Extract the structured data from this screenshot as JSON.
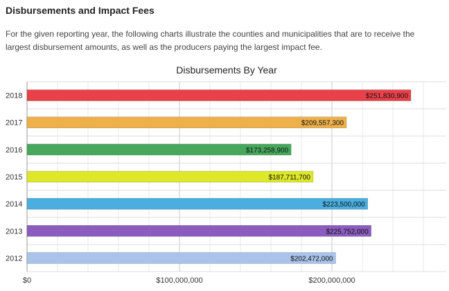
{
  "page": {
    "heading": "Disbursements and Impact Fees",
    "intro": "For the given reporting year, the following charts illustrate the counties and municipalities that are to receive the largest disbursement amounts, as well as the producers paying the largest impact fee."
  },
  "chart_data": {
    "type": "bar",
    "orientation": "horizontal",
    "title": "Disbursements By Year",
    "categories": [
      "2018",
      "2017",
      "2016",
      "2015",
      "2014",
      "2013",
      "2012"
    ],
    "values": [
      251830900,
      209557300,
      173258900,
      187711700,
      223500000,
      225752000,
      202472000
    ],
    "value_labels": [
      "$251,830,900",
      "$209,557,300",
      "$173,258,900",
      "$187,711,700",
      "$223,500,000",
      "$225,752,000",
      "$202,472,000"
    ],
    "colors": [
      "#e8414a",
      "#eeb14a",
      "#47a85d",
      "#dde82a",
      "#4aaee0",
      "#8a5cbe",
      "#a9c3ea"
    ],
    "xticks": [
      0,
      100000000,
      200000000
    ],
    "xtick_labels": [
      "$0",
      "$100,000,000",
      "$200,000,000"
    ],
    "xlim": [
      0,
      275000000
    ],
    "xlabel": "",
    "ylabel": "",
    "grid": true,
    "legend": "none"
  }
}
